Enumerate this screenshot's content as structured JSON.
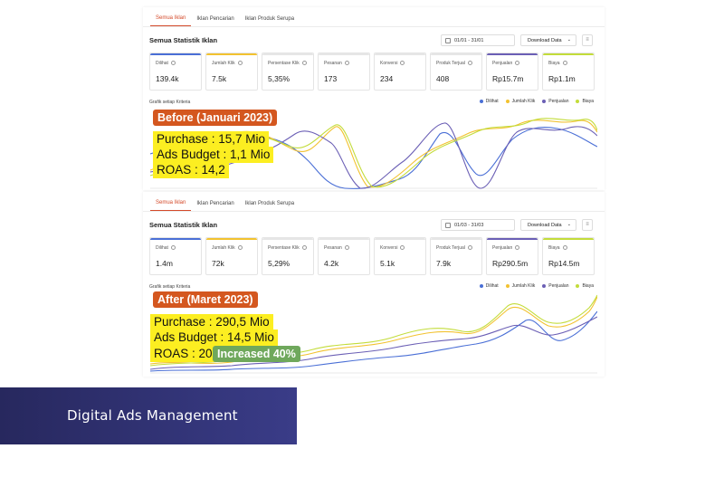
{
  "colors": {
    "dilihat": "#4a6fd6",
    "jumlah_klik": "#f2c230",
    "persentase_klik": "#e6e6e6",
    "pesanan": "#e6e6e6",
    "konversi": "#e6e6e6",
    "produk_terjual": "#e6e6e6",
    "penjualan": "#6b5fb5",
    "biaya": "#c3dc3a",
    "annotation_title": "#d4571f",
    "annotation_text": "#fcee21",
    "annotation_badge": "#6fa85c",
    "banner": "#2f3072"
  },
  "top": {
    "tabs": [
      "Semua Iklan",
      "Iklan Pencarian",
      "Iklan Produk Serupa"
    ],
    "section_title": "Semua Statistik Iklan",
    "date_range": "01/01 - 31/01",
    "download_label": "Download Data",
    "metrics": [
      {
        "label": "Dilihat",
        "value": "139.4k",
        "color_key": "dilihat"
      },
      {
        "label": "Jumlah Klik",
        "value": "7.5k",
        "color_key": "jumlah_klik"
      },
      {
        "label": "Persentase Klik",
        "value": "5,35%",
        "color_key": "persentase_klik"
      },
      {
        "label": "Pesanan",
        "value": "173",
        "color_key": "pesanan"
      },
      {
        "label": "Konversi",
        "value": "234",
        "color_key": "konversi"
      },
      {
        "label": "Produk Terjual",
        "value": "408",
        "color_key": "produk_terjual"
      },
      {
        "label": "Penjualan",
        "value": "Rp15.7m",
        "color_key": "penjualan"
      },
      {
        "label": "Biaya",
        "value": "Rp1.1m",
        "color_key": "biaya"
      }
    ],
    "chart_label": "Grafik setiap Kriteria",
    "legend": [
      "Dilihat",
      "Jumlah Klik",
      "Penjualan",
      "Biaya"
    ],
    "annotation": {
      "title": "Before (Januari 2023)",
      "lines": [
        "Purchase : 15,7 Mio",
        "Ads Budget : 1,1 Mio",
        "ROAS : 14,2"
      ]
    }
  },
  "bottom": {
    "tabs": [
      "Semua Iklan",
      "Iklan Pencarian",
      "Iklan Produk Serupa"
    ],
    "section_title": "Semua Statistik Iklan",
    "date_range": "01/03 - 31/03",
    "download_label": "Download Data",
    "metrics": [
      {
        "label": "Dilihat",
        "value": "1.4m",
        "color_key": "dilihat"
      },
      {
        "label": "Jumlah Klik",
        "value": "72k",
        "color_key": "jumlah_klik"
      },
      {
        "label": "Persentase Klik",
        "value": "5,29%",
        "color_key": "persentase_klik"
      },
      {
        "label": "Pesanan",
        "value": "4.2k",
        "color_key": "pesanan"
      },
      {
        "label": "Konversi",
        "value": "5.1k",
        "color_key": "konversi"
      },
      {
        "label": "Produk Terjual",
        "value": "7.9k",
        "color_key": "produk_terjual"
      },
      {
        "label": "Penjualan",
        "value": "Rp290.5m",
        "color_key": "penjualan"
      },
      {
        "label": "Biaya",
        "value": "Rp14.5m",
        "color_key": "biaya"
      }
    ],
    "chart_label": "Grafik setiap Kriteria",
    "legend": [
      "Dilihat",
      "Jumlah Klik",
      "Penjualan",
      "Biaya"
    ],
    "annotation": {
      "title": "After (Maret 2023)",
      "lines": [
        "Purchase : 290,5 Mio",
        "Ads Budget : 14,5 Mio",
        "ROAS : 20"
      ],
      "badge": "Increased 40%"
    }
  },
  "banner": {
    "text": "Digital Ads Management"
  }
}
